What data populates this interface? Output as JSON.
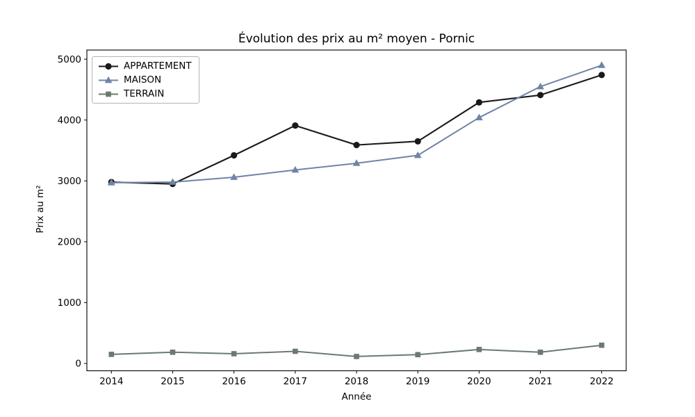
{
  "figure": {
    "background": "#ffffff",
    "axes_frame_color": "#000000",
    "text_color": "#000000"
  },
  "chart_data": {
    "type": "line",
    "title": "Évolution des prix au m² moyen - Pornic",
    "xlabel": "Année",
    "ylabel": "Prix au m²",
    "x": [
      2014,
      2015,
      2016,
      2017,
      2018,
      2019,
      2020,
      2021,
      2022
    ],
    "xticklabels": [
      "2014",
      "2015",
      "2016",
      "2017",
      "2018",
      "2019",
      "2020",
      "2021",
      "2022"
    ],
    "yticks": [
      0,
      1000,
      2000,
      3000,
      4000,
      5000
    ],
    "yticklabels": [
      "0",
      "1000",
      "2000",
      "3000",
      "4000",
      "5000"
    ],
    "xlim": [
      2013.6,
      2022.4
    ],
    "ylim": [
      -120,
      5150
    ],
    "grid": false,
    "legend_position": "upper-left",
    "series": [
      {
        "name": "APPARTEMENT",
        "color": "#1a1a1a",
        "marker": "circle",
        "linewidth": 2.1,
        "values": [
          2980,
          2950,
          3420,
          3910,
          3590,
          3650,
          4290,
          4410,
          4740
        ]
      },
      {
        "name": "MAISON",
        "color": "#6f84a6",
        "marker": "triangle-up",
        "linewidth": 2,
        "values": [
          2970,
          2980,
          3060,
          3180,
          3290,
          3420,
          4040,
          4550,
          4900
        ]
      },
      {
        "name": "TERRAIN",
        "color": "#6b7a70",
        "marker": "square",
        "linewidth": 2,
        "values": [
          150,
          185,
          160,
          200,
          115,
          145,
          230,
          185,
          300
        ]
      }
    ]
  }
}
